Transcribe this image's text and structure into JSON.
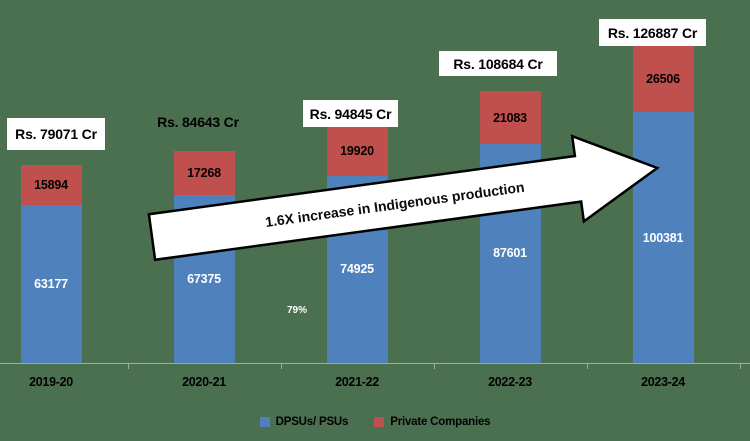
{
  "chart_data": {
    "type": "bar",
    "stacked": true,
    "categories": [
      "2019-20",
      "2020-21",
      "2021-22",
      "2022-23",
      "2023-24"
    ],
    "series": [
      {
        "name": "DPSUs/ PSUs",
        "color": "#4f81bd",
        "values": [
          63177,
          67375,
          74925,
          87601,
          100381
        ]
      },
      {
        "name": "Private Companies",
        "color": "#c0504d",
        "values": [
          15894,
          17268,
          19920,
          21083,
          26506
        ]
      }
    ],
    "totals": [
      79071,
      84643,
      94845,
      108684,
      126887
    ],
    "total_labels": [
      "Rs. 79071 Cr",
      "Rs. 84643 Cr",
      "Rs. 94845 Cr",
      "Rs. 108684 Cr",
      "Rs. 126887 Cr"
    ],
    "annotation": "1.6X increase in Indigenous production",
    "note": "79%",
    "title": "",
    "xlabel": "",
    "ylabel": "",
    "value_axis_visible": false,
    "grid": false,
    "legend_position": "bottom",
    "colors": {
      "background": "#4a704f",
      "axis": "#a6a6a6",
      "label_box": "#ffffff",
      "blue_series": "#4f81bd",
      "red_series": "#c0504d",
      "arrow_fill": "#ffffff",
      "arrow_stroke": "#000000"
    }
  },
  "legend": {
    "items": [
      {
        "label": "DPSUs/ PSUs",
        "color": "#4f81bd"
      },
      {
        "label": "Private Companies",
        "color": "#c0504d"
      }
    ]
  }
}
